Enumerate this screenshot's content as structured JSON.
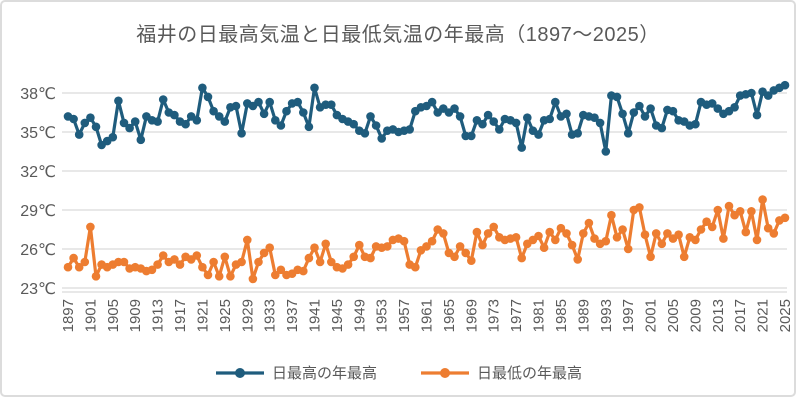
{
  "chart": {
    "title": "福井の日最高気温と日最低気温の年最高（1897～2025）"
  },
  "colors": {
    "max_series": "#1f5c7d",
    "min_series": "#ed7d31",
    "grid": "#d9d9d9",
    "axis_text": "#595959",
    "frame_border": "#dcdcdc"
  },
  "chart_data": {
    "type": "line",
    "title": "福井の日最高気温と日最低気温の年最高（1897～2025）",
    "xlabel": "",
    "ylabel": "",
    "x_start": 1897,
    "x_end": 2025,
    "x_tick_labels": [
      "1897",
      "1901",
      "1905",
      "1909",
      "1913",
      "1917",
      "1921",
      "1925",
      "1929",
      "1933",
      "1937",
      "1941",
      "1945",
      "1949",
      "1953",
      "1957",
      "1961",
      "1965",
      "1969",
      "1973",
      "1977",
      "1981",
      "1985",
      "1989",
      "1993",
      "1997",
      "2001",
      "2005",
      "2009",
      "2013",
      "2017",
      "2021",
      "2025"
    ],
    "yticks": [
      23,
      26,
      29,
      32,
      35,
      38
    ],
    "ytick_suffix": "℃",
    "ylim": [
      22.5,
      39.2
    ],
    "grid": "horizontal",
    "legend_position": "bottom",
    "series": [
      {
        "name": "日最高の年最高",
        "color": "#1f5c7d",
        "values": [
          36.2,
          36.0,
          34.8,
          35.7,
          36.1,
          35.4,
          34.0,
          34.3,
          34.6,
          37.4,
          35.7,
          35.3,
          35.8,
          34.4,
          36.2,
          35.9,
          35.8,
          37.5,
          36.5,
          36.3,
          35.8,
          35.6,
          36.2,
          35.9,
          38.4,
          37.7,
          36.6,
          36.2,
          35.8,
          36.9,
          37.0,
          34.9,
          37.2,
          37.0,
          37.3,
          36.4,
          37.3,
          35.9,
          35.5,
          36.6,
          37.2,
          37.3,
          36.5,
          35.4,
          38.4,
          36.9,
          37.1,
          37.1,
          36.3,
          36.0,
          35.8,
          35.6,
          35.1,
          34.9,
          36.2,
          35.5,
          34.5,
          35.1,
          35.2,
          35.0,
          35.1,
          35.2,
          36.6,
          36.9,
          37.0,
          37.3,
          36.5,
          36.8,
          36.5,
          36.8,
          36.2,
          34.7,
          34.7,
          35.9,
          35.6,
          36.3,
          35.8,
          35.2,
          36.0,
          35.9,
          35.7,
          33.8,
          36.1,
          35.1,
          34.8,
          35.9,
          36.0,
          37.3,
          36.2,
          36.4,
          34.8,
          34.9,
          36.3,
          36.2,
          36.1,
          35.7,
          33.5,
          37.8,
          37.7,
          36.4,
          34.9,
          36.5,
          37.0,
          36.2,
          36.8,
          35.5,
          35.3,
          36.7,
          36.6,
          35.9,
          35.8,
          35.5,
          35.6,
          37.3,
          37.1,
          37.2,
          36.8,
          36.4,
          36.6,
          36.9,
          37.8,
          37.9,
          38.0,
          36.3,
          38.1,
          37.8,
          38.2,
          38.4,
          38.6
        ]
      },
      {
        "name": "日最低の年最高",
        "color": "#ed7d31",
        "values": [
          24.6,
          25.3,
          24.6,
          25.0,
          27.7,
          23.9,
          24.8,
          24.6,
          24.8,
          25.0,
          25.0,
          24.5,
          24.6,
          24.5,
          24.3,
          24.4,
          24.8,
          25.5,
          25.0,
          25.2,
          24.8,
          25.4,
          25.2,
          25.5,
          24.6,
          24.0,
          25.0,
          23.9,
          25.4,
          23.9,
          24.8,
          25.0,
          26.7,
          23.7,
          25.0,
          25.7,
          26.1,
          24.0,
          24.4,
          24.0,
          24.1,
          24.4,
          24.3,
          25.3,
          26.1,
          25.0,
          26.4,
          25.0,
          24.6,
          24.5,
          24.8,
          25.4,
          26.3,
          25.4,
          25.3,
          26.2,
          26.1,
          26.2,
          26.7,
          26.8,
          26.6,
          24.8,
          24.6,
          25.9,
          26.2,
          26.6,
          27.5,
          27.2,
          25.7,
          25.4,
          26.2,
          25.7,
          25.1,
          27.3,
          26.3,
          27.2,
          27.7,
          26.9,
          26.7,
          26.8,
          26.9,
          25.3,
          26.4,
          26.7,
          27.0,
          26.1,
          27.3,
          26.7,
          27.6,
          27.2,
          26.3,
          25.2,
          27.2,
          28.0,
          26.8,
          26.4,
          26.6,
          28.6,
          26.9,
          27.5,
          26.0,
          29.0,
          29.2,
          27.1,
          25.4,
          27.2,
          26.4,
          27.2,
          26.8,
          27.1,
          25.4,
          26.9,
          26.7,
          27.5,
          28.1,
          27.7,
          29.0,
          26.8,
          29.3,
          28.6,
          28.9,
          27.3,
          28.9,
          26.7,
          29.8,
          27.6,
          27.2,
          28.2,
          28.4
        ]
      }
    ]
  }
}
